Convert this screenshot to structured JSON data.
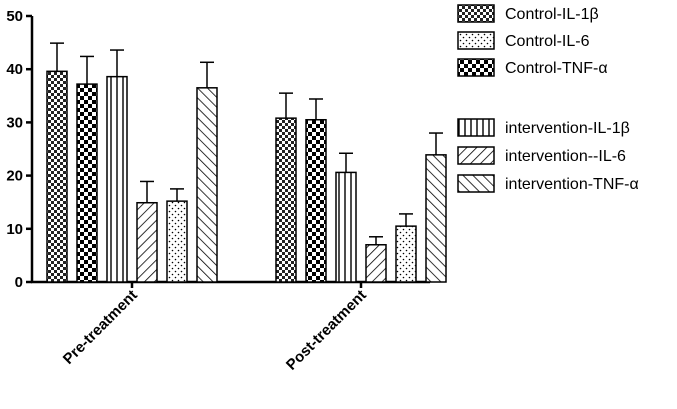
{
  "chart_data": {
    "type": "bar",
    "title": "",
    "xlabel": "",
    "ylabel": "",
    "ylim": [
      0,
      50
    ],
    "yticks": [
      0,
      10,
      20,
      30,
      40,
      50
    ],
    "categories": [
      "Pre-treatment",
      "Post-treatment"
    ],
    "legend_position": "right",
    "grid": false,
    "series": [
      {
        "name": "Control-IL-1β",
        "pattern": "checker-fine",
        "values": [
          39.6,
          30.8
        ],
        "errors": [
          5.3,
          4.7
        ]
      },
      {
        "name": "Control-TNF-α",
        "pattern": "checker-bold",
        "values": [
          37.2,
          30.5
        ],
        "errors": [
          5.2,
          3.9
        ]
      },
      {
        "name": "intervention-IL-1β",
        "pattern": "vertical",
        "values": [
          38.6,
          20.6
        ],
        "errors": [
          5.0,
          3.6
        ]
      },
      {
        "name": "intervention--IL-6",
        "pattern": "diagonal-right",
        "values": [
          14.9,
          7.0
        ],
        "errors": [
          4.0,
          1.5
        ]
      },
      {
        "name": "Control-IL-6",
        "pattern": "dots",
        "values": [
          15.2,
          10.5
        ],
        "errors": [
          2.3,
          2.3
        ]
      },
      {
        "name": "intervention-TNF-α",
        "pattern": "diagonal-left",
        "values": [
          36.5,
          23.9
        ],
        "errors": [
          4.8,
          4.1
        ]
      }
    ],
    "legend": [
      {
        "label": "Control-IL-1β",
        "pattern": "checker-fine"
      },
      {
        "label": "Control-IL-6",
        "pattern": "dots"
      },
      {
        "label": "Control-TNF-α",
        "pattern": "checker-bold"
      },
      {
        "label": "intervention-IL-1β",
        "pattern": "vertical"
      },
      {
        "label": "intervention--IL-6",
        "pattern": "diagonal-right"
      },
      {
        "label": "intervention-TNF-α",
        "pattern": "diagonal-left"
      }
    ]
  }
}
